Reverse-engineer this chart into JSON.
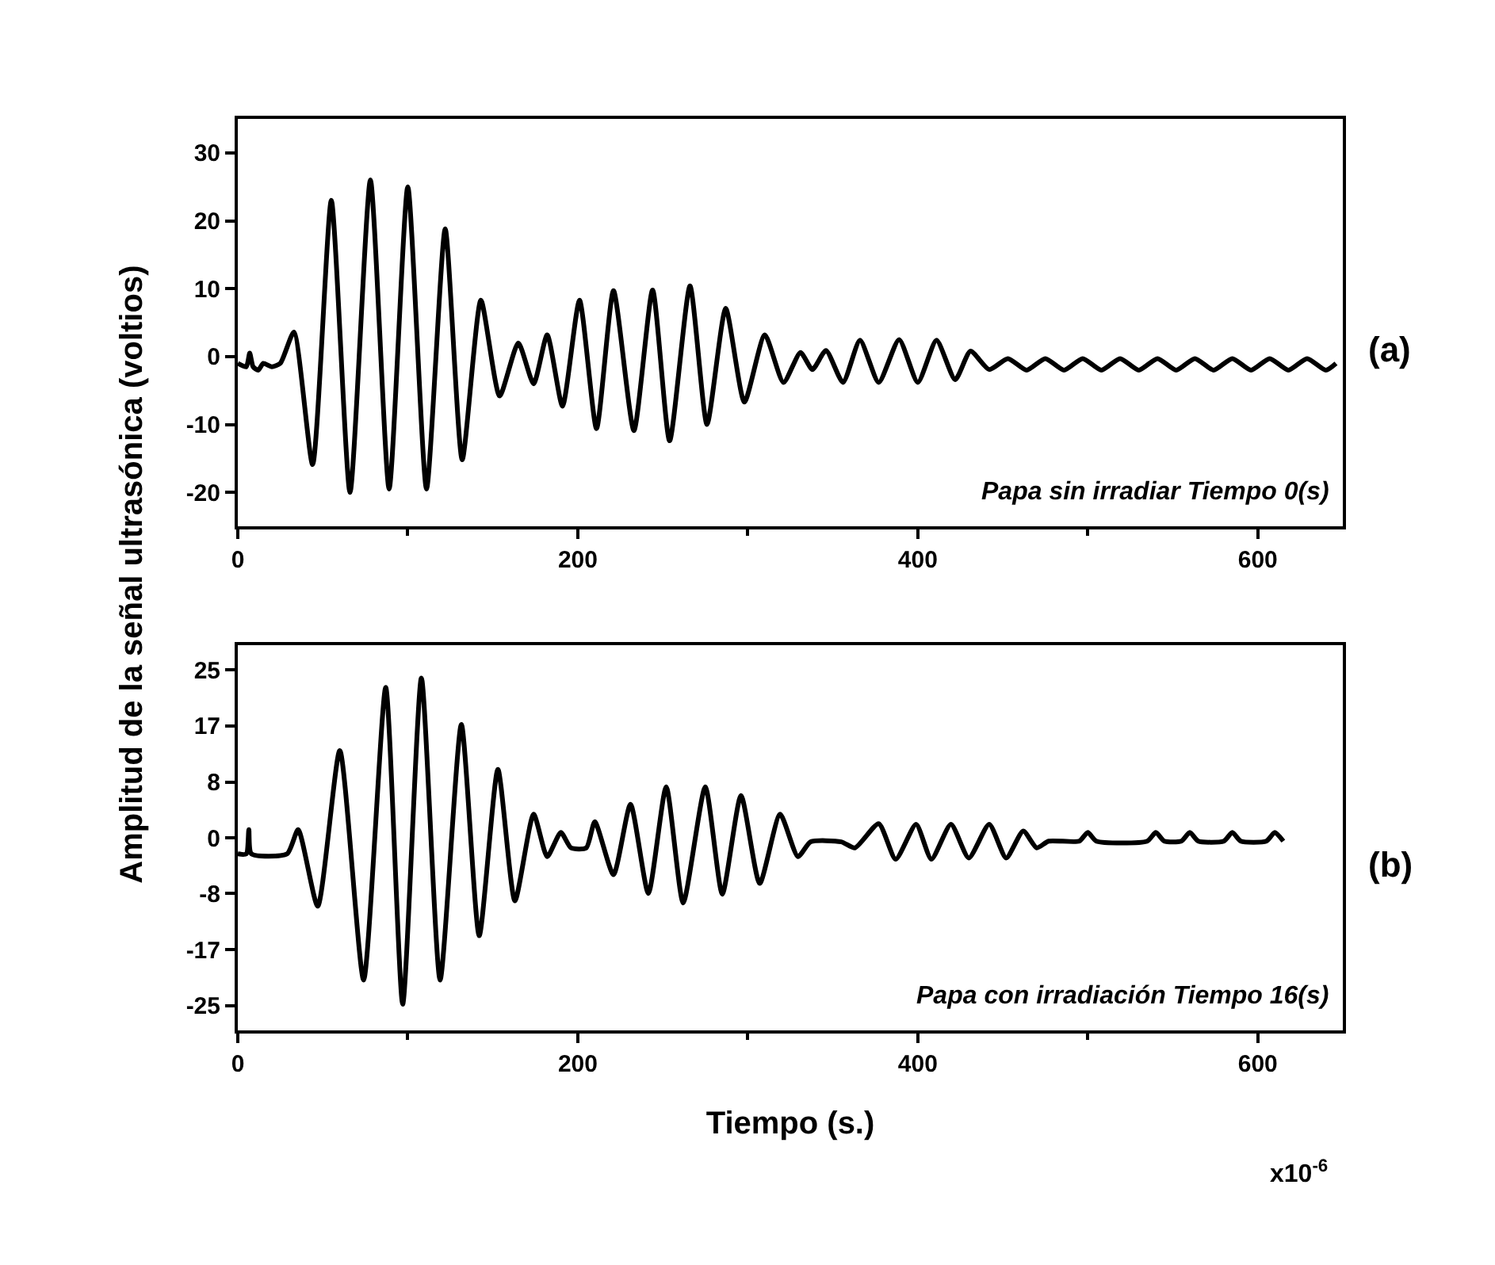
{
  "chart_data": [
    {
      "type": "line",
      "ylabel": "Amplitud de la señal ultrasónica (voltios)",
      "xlim": [
        0,
        650
      ],
      "ylim": [
        -25,
        35
      ],
      "xticks": [
        0,
        200,
        400,
        600
      ],
      "yticks": [
        -20,
        -10,
        0,
        10,
        20,
        30
      ],
      "marker": "none",
      "line_style": "solid",
      "annotations": [
        "Papa sin irradiar Tiempo 0(s)",
        "(a)"
      ],
      "series": [
        {
          "color": "#000000",
          "x": [
            0,
            5,
            7,
            9,
            12,
            15,
            20,
            25,
            33,
            44,
            55,
            66,
            78,
            89,
            100,
            111,
            122,
            132,
            143,
            154,
            165,
            174,
            182,
            191,
            201,
            211,
            221,
            233,
            244,
            254,
            266,
            276,
            287,
            298,
            310,
            321,
            331,
            338,
            346,
            356,
            366,
            377,
            389,
            400,
            411,
            422,
            431,
            442,
            453,
            464,
            475,
            486,
            497,
            508,
            519,
            530,
            541,
            552,
            563,
            574,
            585,
            596,
            607,
            618,
            629,
            640,
            646
          ],
          "values": [
            -1,
            -1.5,
            0.5,
            -1.5,
            -2,
            -1,
            -1.5,
            -1,
            3.6,
            -15.9,
            23,
            -20,
            26,
            -19.5,
            25,
            -19.5,
            18.8,
            -15.2,
            8.3,
            -5.8,
            2,
            -4,
            3.2,
            -7.3,
            8.3,
            -10.6,
            9.7,
            -10.9,
            9.8,
            -12.4,
            10.4,
            -10,
            7.1,
            -6.7,
            3.2,
            -3.8,
            0.6,
            -1.9,
            0.9,
            -3.8,
            2.4,
            -3.8,
            2.5,
            -3.8,
            2.4,
            -3.4,
            0.8,
            -1.9,
            -0.3,
            -2,
            -0.3,
            -2,
            -0.3,
            -2,
            -0.3,
            -2,
            -0.3,
            -2,
            -0.3,
            -2,
            -0.3,
            -2,
            -0.3,
            -2,
            -0.3,
            -2,
            -1
          ]
        }
      ]
    },
    {
      "type": "line",
      "xlabel": "Tiempo (s.)",
      "xlim": [
        0,
        650
      ],
      "ylim": [
        -28.7,
        28.7
      ],
      "xticks": [
        0,
        200,
        400,
        600
      ],
      "yticks": [
        {
          "value": -25,
          "label": "-25"
        },
        {
          "value": -16.7,
          "label": "-17"
        },
        {
          "value": -8.3,
          "label": "-8"
        },
        {
          "value": 0,
          "label": "0"
        },
        {
          "value": 8.3,
          "label": "8"
        },
        {
          "value": 16.7,
          "label": "17"
        },
        {
          "value": 25,
          "label": "25"
        }
      ],
      "marker": "none",
      "line_style": "solid",
      "annotations": [
        "Papa con irradiación Tiempo 16(s)",
        "(b)",
        "x10$^{-6}$"
      ],
      "series": [
        {
          "color": "#000000",
          "x": [
            0,
            5,
            6.5,
            8,
            29,
            35.5,
            47,
            60,
            74,
            87,
            97,
            108,
            119,
            131.5,
            142,
            153,
            163,
            174,
            182,
            190,
            196,
            205,
            210,
            221,
            231,
            241.5,
            252,
            262,
            275,
            285,
            296,
            307,
            319,
            329.5,
            337,
            355,
            363,
            377,
            387,
            399,
            408,
            419.5,
            430,
            442,
            452,
            462,
            470,
            477,
            495,
            500,
            505,
            535,
            540,
            545,
            555,
            560,
            565,
            580,
            585,
            590,
            605,
            610,
            615
          ],
          "values": [
            -2.4,
            -2.4,
            1.2,
            -2.4,
            -2.4,
            1.2,
            -10.2,
            13,
            -21.2,
            22.4,
            -24.8,
            23.8,
            -21.2,
            16.9,
            -14.6,
            10.2,
            -9.4,
            3.5,
            -2.8,
            0.8,
            -1.5,
            -1.5,
            2.4,
            -5.5,
            5,
            -8.3,
            7.6,
            -9.7,
            7.6,
            -8.4,
            6.3,
            -6.8,
            3.5,
            -2.8,
            -0.6,
            -0.6,
            -1.5,
            2.1,
            -3.2,
            2,
            -3.2,
            2,
            -3,
            2,
            -3,
            1,
            -1.5,
            -0.5,
            -0.5,
            0.8,
            -0.5,
            -0.5,
            0.8,
            -0.5,
            -0.5,
            0.8,
            -0.5,
            -0.5,
            0.8,
            -0.5,
            -0.5,
            0.8,
            -0.5
          ]
        }
      ]
    }
  ]
}
